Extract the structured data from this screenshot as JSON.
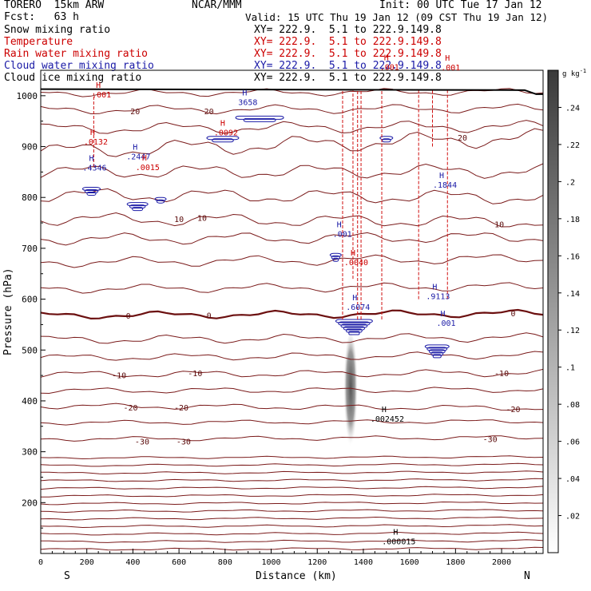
{
  "header": {
    "model": "TORERO  15km ARW",
    "forecast": "Fcst:   63 h",
    "center": "NCAR/MMM",
    "init": "Init: 00 UTC Tue 17 Jan 12",
    "valid": "Valid: 15 UTC Thu 19 Jan 12 (09 CST Thu 19 Jan 12)",
    "fields": [
      {
        "label": "Snow mixing ratio",
        "xy": "XY= 222.9.  5.1 to 222.9.149.8",
        "color": "#000000"
      },
      {
        "label": "Temperature",
        "xy": "XY= 222.9.  5.1 to 222.9.149.8",
        "color": "#cc0000"
      },
      {
        "label": "Rain water mixing ratio",
        "xy": "XY= 222.9.  5.1 to 222.9.149.8",
        "color": "#cc0000"
      },
      {
        "label": "Cloud water mixing ratio",
        "xy": "XY= 222.9.  5.1 to 222.9.149.8",
        "color": "#1a1aa6"
      },
      {
        "label": "Cloud ice mixing ratio",
        "xy": "XY= 222.9.  5.1 to 222.9.149.8",
        "color": "#000000"
      }
    ]
  },
  "chart_data": {
    "type": "contour cross-section",
    "xlabel": "Distance (km)",
    "ylabel": "Pressure (hPa)",
    "xlim": [
      0,
      2180
    ],
    "ylim": [
      1050,
      100
    ],
    "x_ticks": [
      "0",
      "200",
      "400",
      "600",
      "800",
      "1000",
      "1200",
      "1400",
      "1600",
      "1800",
      "2000"
    ],
    "y_ticks": [
      "200",
      "300",
      "400",
      "500",
      "600",
      "700",
      "800",
      "900",
      "1000"
    ],
    "x_end_labels": {
      "left": "S",
      "right": "N"
    },
    "colorbar": {
      "unit": "g kg",
      "unit_exp": "-1",
      "ticks": [
        ".02",
        ".04",
        ".06",
        ".08",
        ".1",
        ".12",
        ".14",
        ".16",
        ".18",
        ".2",
        ".22",
        ".24"
      ],
      "range": [
        0,
        0.26
      ]
    },
    "temperature_contour_labels": [
      {
        "x": 440,
        "p": 321,
        "text": "-30"
      },
      {
        "x": 620,
        "p": 321,
        "text": "-30"
      },
      {
        "x": 1950,
        "p": 325,
        "text": "-30"
      },
      {
        "x": 390,
        "p": 387,
        "text": "-20"
      },
      {
        "x": 610,
        "p": 387,
        "text": "-20"
      },
      {
        "x": 2050,
        "p": 384,
        "text": "-20"
      },
      {
        "x": 340,
        "p": 451,
        "text": "-10"
      },
      {
        "x": 670,
        "p": 455,
        "text": "-10"
      },
      {
        "x": 2000,
        "p": 455,
        "text": "-10"
      },
      {
        "x": 380,
        "p": 568,
        "text": "0"
      },
      {
        "x": 730,
        "p": 569,
        "text": "0"
      },
      {
        "x": 2050,
        "p": 573,
        "text": "0"
      },
      {
        "x": 600,
        "p": 758,
        "text": "10"
      },
      {
        "x": 700,
        "p": 760,
        "text": "10"
      },
      {
        "x": 1990,
        "p": 748,
        "text": "10"
      },
      {
        "x": 1830,
        "p": 918,
        "text": "20"
      },
      {
        "x": 410,
        "p": 970,
        "text": "20"
      },
      {
        "x": 730,
        "p": 970,
        "text": "20"
      }
    ],
    "maxima": [
      {
        "x": 1490,
        "p": 362,
        "text": ".002452",
        "color": "#000000"
      },
      {
        "x": 1540,
        "p": 121,
        "text": ".000015",
        "color": "#000000"
      },
      {
        "x": 1363,
        "p": 582,
        "text": ".6074",
        "color": "#1a1aa6"
      },
      {
        "x": 1710,
        "p": 603,
        "text": ".9113",
        "color": "#1a1aa6"
      },
      {
        "x": 1745,
        "p": 551,
        "text": ".001",
        "color": "#1a1aa6"
      },
      {
        "x": 1295,
        "p": 726,
        "text": ".001",
        "color": "#1a1aa6"
      },
      {
        "x": 220,
        "p": 856,
        "text": ".4346",
        "color": "#1a1aa6"
      },
      {
        "x": 410,
        "p": 878,
        "text": ".2447",
        "color": "#1a1aa6"
      },
      {
        "x": 885,
        "p": 985,
        "text": "3658",
        "color": "#1a1aa6"
      },
      {
        "x": 1740,
        "p": 822,
        "text": ".1844",
        "color": "#1a1aa6"
      },
      {
        "x": 1355,
        "p": 670,
        "text": ".0040",
        "color": "#cc0000"
      },
      {
        "x": 450,
        "p": 857,
        "text": ".0015",
        "color": "#cc0000"
      },
      {
        "x": 225,
        "p": 907,
        "text": ".0132",
        "color": "#cc0000"
      },
      {
        "x": 790,
        "p": 925,
        "text": ".0092",
        "color": "#cc0000"
      },
      {
        "x": 250,
        "p": 1000,
        "text": ".001",
        "color": "#cc0000"
      },
      {
        "x": 1500,
        "p": 1054,
        "text": ".001",
        "color": "#cc0000"
      },
      {
        "x": 1765,
        "p": 1053,
        "text": ".001",
        "color": "#cc0000"
      }
    ]
  }
}
